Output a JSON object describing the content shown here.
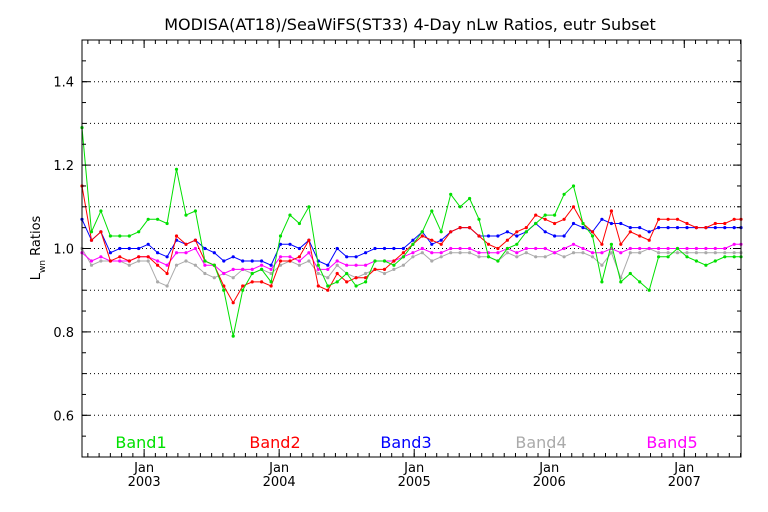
{
  "chart_data": {
    "type": "line",
    "title": "MODISA(AT18)/SeaWiFS(ST33) 4-Day nLw Ratios, eutr Subset",
    "ylabel_main": "L",
    "ylabel_sub": "wn",
    "ylabel_rest": " Ratios",
    "xlabel": "",
    "xlim": [
      2002.54,
      2007.42
    ],
    "ylim": [
      0.5,
      1.5
    ],
    "yticks": [
      0.6,
      0.8,
      1.0,
      1.2,
      1.4
    ],
    "ytick_labels": [
      "0.6",
      "0.8",
      "1.0",
      "1.2",
      "1.4"
    ],
    "gridlines": [
      0.6,
      0.7,
      0.8,
      0.9,
      1.0,
      1.1,
      1.2,
      1.3,
      1.4
    ],
    "grid": "dotted horizontal",
    "xticks": [
      {
        "x": 2003.0,
        "month": "Jan",
        "year": "2003"
      },
      {
        "x": 2004.0,
        "month": "Jan",
        "year": "2004"
      },
      {
        "x": 2005.0,
        "month": "Jan",
        "year": "2005"
      },
      {
        "x": 2006.0,
        "month": "Jan",
        "year": "2006"
      },
      {
        "x": 2007.0,
        "month": "Jan",
        "year": "2007"
      }
    ],
    "x": [
      2002.54,
      2002.61,
      2002.68,
      2002.75,
      2002.82,
      2002.89,
      2002.96,
      2003.03,
      2003.1,
      2003.17,
      2003.24,
      2003.31,
      2003.38,
      2003.45,
      2003.52,
      2003.59,
      2003.66,
      2003.73,
      2003.8,
      2003.87,
      2003.94,
      2004.01,
      2004.08,
      2004.15,
      2004.22,
      2004.29,
      2004.36,
      2004.43,
      2004.5,
      2004.57,
      2004.64,
      2004.71,
      2004.78,
      2004.85,
      2004.92,
      2004.99,
      2005.06,
      2005.13,
      2005.2,
      2005.27,
      2005.34,
      2005.41,
      2005.48,
      2005.55,
      2005.62,
      2005.69,
      2005.76,
      2005.83,
      2005.9,
      2005.97,
      2006.04,
      2006.11,
      2006.18,
      2006.25,
      2006.32,
      2006.39,
      2006.46,
      2006.53,
      2006.6,
      2006.67,
      2006.74,
      2006.81,
      2006.88,
      2006.95,
      2007.02,
      2007.09,
      2007.16,
      2007.23,
      2007.3,
      2007.37,
      2007.42
    ],
    "series": [
      {
        "name": "Band1",
        "color": "#00e000",
        "values": [
          1.29,
          1.04,
          1.09,
          1.03,
          1.03,
          1.03,
          1.04,
          1.07,
          1.07,
          1.06,
          1.19,
          1.08,
          1.09,
          0.97,
          0.96,
          0.9,
          0.79,
          0.9,
          0.94,
          0.95,
          0.92,
          1.03,
          1.08,
          1.06,
          1.1,
          0.96,
          0.91,
          0.92,
          0.94,
          0.91,
          0.92,
          0.97,
          0.97,
          0.96,
          0.98,
          1.01,
          1.04,
          1.09,
          1.04,
          1.13,
          1.1,
          1.12,
          1.07,
          0.98,
          0.97,
          1.0,
          1.01,
          1.04,
          1.06,
          1.08,
          1.08,
          1.13,
          1.15,
          1.06,
          1.03,
          0.92,
          1.01,
          0.92,
          0.94,
          0.92,
          0.9,
          0.98,
          0.98,
          1.0,
          0.98,
          0.97,
          0.96,
          0.97,
          0.98,
          0.98,
          0.98
        ]
      },
      {
        "name": "Band2",
        "color": "#ff0000",
        "values": [
          1.15,
          1.02,
          1.04,
          0.97,
          0.98,
          0.97,
          0.98,
          0.98,
          0.96,
          0.94,
          1.03,
          1.01,
          1.02,
          0.97,
          0.96,
          0.91,
          0.87,
          0.91,
          0.92,
          0.92,
          0.91,
          0.97,
          0.97,
          0.98,
          1.02,
          0.91,
          0.9,
          0.94,
          0.92,
          0.93,
          0.93,
          0.95,
          0.95,
          0.97,
          0.99,
          1.01,
          1.03,
          1.02,
          1.01,
          1.04,
          1.05,
          1.05,
          1.03,
          1.01,
          1.0,
          1.02,
          1.04,
          1.05,
          1.08,
          1.07,
          1.06,
          1.07,
          1.1,
          1.06,
          1.04,
          1.01,
          1.09,
          1.01,
          1.04,
          1.03,
          1.02,
          1.07,
          1.07,
          1.07,
          1.06,
          1.05,
          1.05,
          1.06,
          1.06,
          1.07,
          1.07
        ]
      },
      {
        "name": "Band3",
        "color": "#0000ff",
        "values": [
          1.07,
          1.02,
          1.04,
          0.99,
          1.0,
          1.0,
          1.0,
          1.01,
          0.99,
          0.98,
          1.02,
          1.01,
          1.02,
          1.0,
          0.99,
          0.97,
          0.98,
          0.97,
          0.97,
          0.97,
          0.96,
          1.01,
          1.01,
          1.0,
          1.02,
          0.97,
          0.96,
          1.0,
          0.98,
          0.98,
          0.99,
          1.0,
          1.0,
          1.0,
          1.0,
          1.02,
          1.04,
          1.01,
          1.02,
          1.04,
          1.05,
          1.05,
          1.03,
          1.03,
          1.03,
          1.04,
          1.03,
          1.04,
          1.06,
          1.04,
          1.03,
          1.03,
          1.06,
          1.05,
          1.04,
          1.07,
          1.06,
          1.06,
          1.05,
          1.05,
          1.04,
          1.05,
          1.05,
          1.05,
          1.05,
          1.05,
          1.05,
          1.05,
          1.05,
          1.05,
          1.05
        ]
      },
      {
        "name": "Band4",
        "color": "#aaaaaa",
        "values": [
          1.0,
          0.96,
          0.97,
          0.97,
          0.97,
          0.96,
          0.97,
          0.97,
          0.92,
          0.91,
          0.96,
          0.97,
          0.96,
          0.94,
          0.93,
          0.94,
          0.93,
          0.95,
          0.94,
          0.95,
          0.94,
          0.96,
          0.97,
          0.96,
          0.97,
          0.94,
          0.93,
          0.96,
          0.94,
          0.93,
          0.94,
          0.95,
          0.94,
          0.95,
          0.96,
          0.98,
          0.99,
          0.97,
          0.98,
          0.99,
          0.99,
          0.99,
          0.98,
          0.98,
          0.97,
          0.99,
          0.98,
          0.99,
          0.98,
          0.98,
          0.99,
          0.98,
          0.99,
          0.99,
          0.98,
          0.96,
          0.99,
          0.93,
          0.99,
          0.99,
          1.0,
          0.99,
          0.99,
          0.99,
          0.99,
          0.99,
          0.99,
          0.99,
          0.99,
          0.99,
          0.99
        ]
      },
      {
        "name": "Band5",
        "color": "#ff00ff",
        "values": [
          0.99,
          0.97,
          0.98,
          0.97,
          0.97,
          0.97,
          0.98,
          0.98,
          0.97,
          0.96,
          0.99,
          0.99,
          1.0,
          0.96,
          0.96,
          0.94,
          0.95,
          0.95,
          0.95,
          0.96,
          0.95,
          0.98,
          0.98,
          0.97,
          0.99,
          0.95,
          0.95,
          0.97,
          0.96,
          0.96,
          0.96,
          0.97,
          0.97,
          0.97,
          0.98,
          0.99,
          1.0,
          0.99,
          0.99,
          1.0,
          1.0,
          1.0,
          0.99,
          0.99,
          0.99,
          1.0,
          0.99,
          1.0,
          1.0,
          1.0,
          0.99,
          1.0,
          1.01,
          1.0,
          0.99,
          0.99,
          1.0,
          0.99,
          1.0,
          1.0,
          1.0,
          1.0,
          1.0,
          1.0,
          1.0,
          1.0,
          1.0,
          1.0,
          1.0,
          1.01,
          1.01
        ]
      }
    ]
  }
}
